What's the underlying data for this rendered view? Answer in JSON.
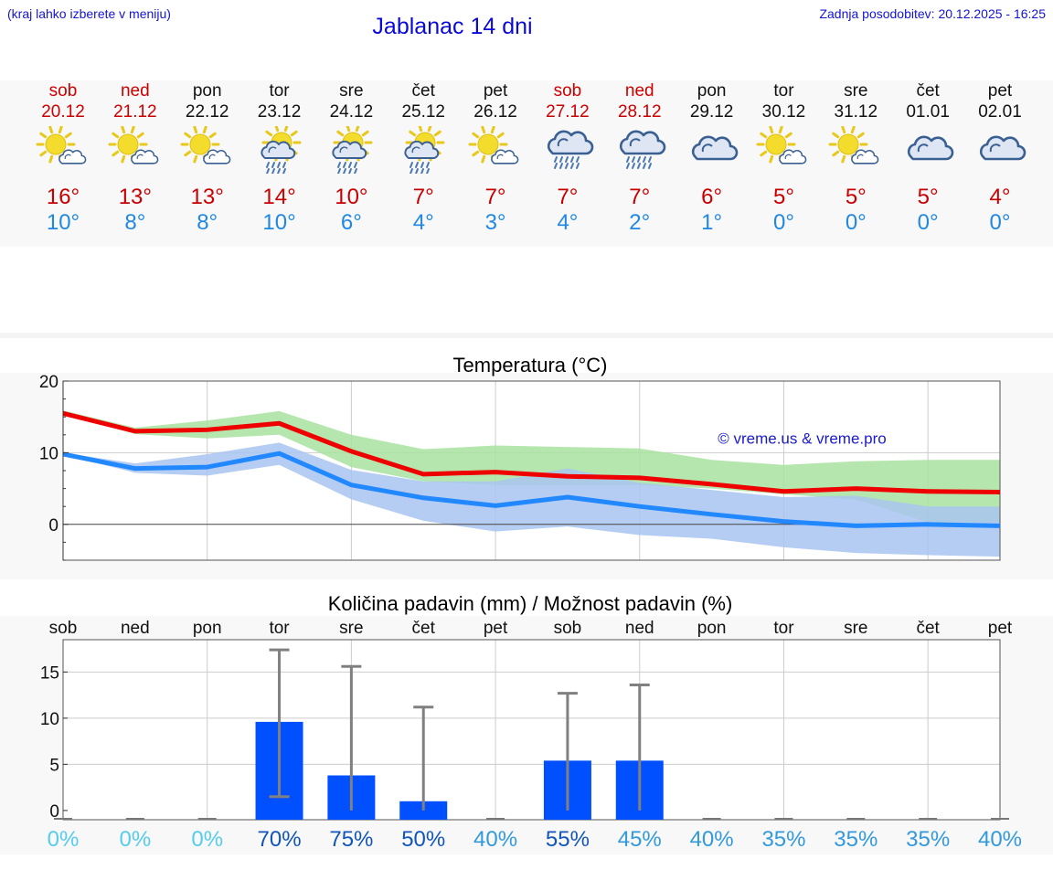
{
  "header": {
    "hint": "(kraj lahko izberete v meniju)",
    "title": "Jablanac 14 dni",
    "updated": "Zadnja posodobitev: 20.12.2025 - 16:25"
  },
  "days": [
    {
      "name": "sob",
      "date": "20.12",
      "weekend": true,
      "icon": "sun-cloud-icon",
      "tmax": "16°",
      "tmin": "10°"
    },
    {
      "name": "ned",
      "date": "21.12",
      "weekend": true,
      "icon": "sun-cloud-icon",
      "tmax": "13°",
      "tmin": "8°"
    },
    {
      "name": "pon",
      "date": "22.12",
      "weekend": false,
      "icon": "sun-cloud-icon",
      "tmax": "13°",
      "tmin": "8°"
    },
    {
      "name": "tor",
      "date": "23.12",
      "weekend": false,
      "icon": "sun-cloud-rain-icon",
      "tmax": "14°",
      "tmin": "10°"
    },
    {
      "name": "sre",
      "date": "24.12",
      "weekend": false,
      "icon": "sun-cloud-rain-icon",
      "tmax": "10°",
      "tmin": "6°"
    },
    {
      "name": "čet",
      "date": "25.12",
      "weekend": false,
      "icon": "sun-cloud-rain-icon",
      "tmax": "7°",
      "tmin": "4°"
    },
    {
      "name": "pet",
      "date": "26.12",
      "weekend": false,
      "icon": "sun-cloud-icon",
      "tmax": "7°",
      "tmin": "3°"
    },
    {
      "name": "sob",
      "date": "27.12",
      "weekend": true,
      "icon": "cloud-rain-icon",
      "tmax": "7°",
      "tmin": "4°"
    },
    {
      "name": "ned",
      "date": "28.12",
      "weekend": true,
      "icon": "cloud-rain-icon",
      "tmax": "7°",
      "tmin": "2°"
    },
    {
      "name": "pon",
      "date": "29.12",
      "weekend": false,
      "icon": "cloud-icon",
      "tmax": "6°",
      "tmin": "1°"
    },
    {
      "name": "tor",
      "date": "30.12",
      "weekend": false,
      "icon": "sun-cloud-icon",
      "tmax": "5°",
      "tmin": "0°"
    },
    {
      "name": "sre",
      "date": "31.12",
      "weekend": false,
      "icon": "sun-cloud-icon",
      "tmax": "5°",
      "tmin": "0°"
    },
    {
      "name": "čet",
      "date": "01.01",
      "weekend": false,
      "icon": "cloud-icon",
      "tmax": "5°",
      "tmin": "0°"
    },
    {
      "name": "pet",
      "date": "02.01",
      "weekend": false,
      "icon": "cloud-icon",
      "tmax": "4°",
      "tmin": "0°"
    }
  ],
  "colors": {
    "max_line": "#ee0000",
    "min_line": "#2288ff",
    "max_band": "#a8e2a0",
    "min_band": "#a8c4f0",
    "bar": "#0050ff",
    "whisker": "#808080",
    "pct_dry": "#55ccee",
    "pct_mid": "#3399dd",
    "pct_wet": "#1155bb"
  },
  "chart_data": [
    {
      "type": "line",
      "title": "Temperatura (°C)",
      "watermark": "© vreme.us & vreme.pro",
      "x": [
        0,
        1,
        2,
        3,
        4,
        5,
        6,
        7,
        8,
        9,
        10,
        11,
        12,
        13
      ],
      "ylim": [
        -5,
        20
      ],
      "yticks": [
        0,
        10,
        20
      ],
      "series": [
        {
          "name": "max",
          "values": [
            15.5,
            13.0,
            13.2,
            14.1,
            10.2,
            7.0,
            7.3,
            6.7,
            6.5,
            5.6,
            4.6,
            5.0,
            4.6,
            4.5
          ],
          "band_low": [
            15.5,
            12.6,
            12.0,
            12.5,
            8.0,
            6.0,
            5.5,
            5.5,
            5.5,
            5.0,
            4.2,
            3.5,
            0.3,
            0.3
          ],
          "band_high": [
            15.9,
            13.5,
            14.5,
            15.8,
            12.5,
            10.5,
            11.0,
            10.8,
            10.6,
            9.0,
            8.3,
            8.8,
            9.0,
            9.0
          ]
        },
        {
          "name": "min",
          "values": [
            9.8,
            7.8,
            8.0,
            9.9,
            5.5,
            3.7,
            2.6,
            3.8,
            2.5,
            1.4,
            0.4,
            -0.2,
            0.0,
            -0.2
          ],
          "band_low": [
            9.7,
            7.2,
            6.8,
            8.3,
            3.5,
            0.5,
            -1.0,
            -0.3,
            -1.5,
            -2.0,
            -3.2,
            -4.0,
            -4.3,
            -4.5
          ],
          "band_high": [
            10.0,
            8.5,
            9.8,
            11.4,
            7.6,
            6.0,
            6.0,
            7.8,
            5.8,
            4.8,
            3.8,
            4.0,
            2.5,
            2.5
          ]
        }
      ]
    },
    {
      "type": "bar",
      "title": "Količina padavin (mm) / Možnost padavin (%)",
      "categories": [
        "sob",
        "ned",
        "pon",
        "tor",
        "sre",
        "čet",
        "pet",
        "sob",
        "ned",
        "pon",
        "tor",
        "sre",
        "čet",
        "pet"
      ],
      "values": [
        0,
        0,
        0,
        9.6,
        3.8,
        1.0,
        0,
        5.4,
        5.4,
        0,
        0,
        0,
        0,
        0
      ],
      "err_low": [
        0,
        0,
        0,
        1.5,
        0,
        0,
        0,
        0,
        0,
        0,
        0,
        0,
        0,
        0
      ],
      "err_high": [
        0,
        0,
        0,
        17.4,
        15.6,
        11.2,
        0,
        12.7,
        13.6,
        0,
        0,
        0,
        0,
        0
      ],
      "probability": [
        "0%",
        "0%",
        "0%",
        "70%",
        "75%",
        "50%",
        "40%",
        "55%",
        "45%",
        "40%",
        "35%",
        "35%",
        "35%",
        "40%"
      ],
      "ylim": [
        -1,
        18.5
      ],
      "yticks": [
        0,
        5,
        10,
        15
      ]
    }
  ]
}
